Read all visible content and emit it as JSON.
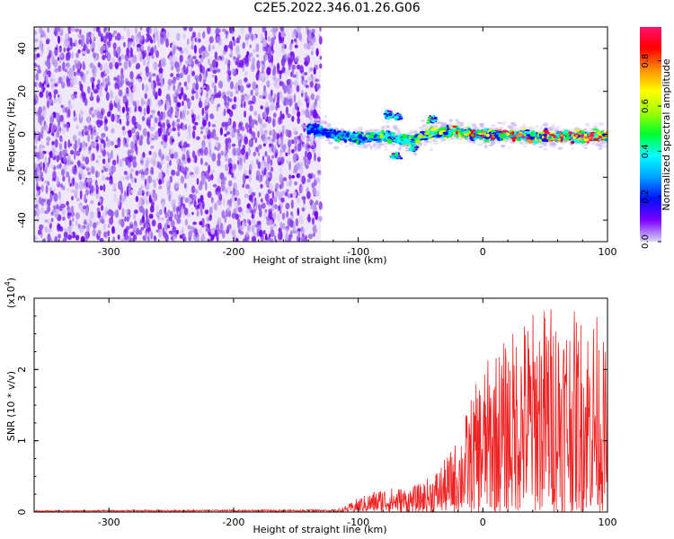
{
  "figure_title": "C2E5.2022.346.01.26.G06",
  "chart_data": [
    {
      "type": "heatmap",
      "xlabel": "Height of straight line (km)",
      "ylabel": "Frequency (Hz)",
      "xlim": [
        -360,
        100
      ],
      "ylim": [
        -50,
        50
      ],
      "xticks": [
        -300,
        -200,
        -100,
        0,
        100
      ],
      "yticks": [
        -40,
        -20,
        0,
        20,
        40
      ],
      "colorbar": {
        "label": "Normalized spectral amplitude",
        "range": [
          0,
          0.95
        ],
        "ticks": [
          0.0,
          0.2,
          0.4,
          0.6,
          0.8
        ],
        "colormap": [
          "#d8d8f0",
          "#7a00ff",
          "#0010ff",
          "#00a0ff",
          "#00ffff",
          "#00ff30",
          "#a0ff00",
          "#ffff00",
          "#ff9000",
          "#ff0000",
          "#ff1070"
        ]
      },
      "noise_region_x": [
        -360,
        -130
      ],
      "signal_track": [
        {
          "x": -140,
          "f": 3
        },
        {
          "x": -120,
          "f": 0
        },
        {
          "x": -100,
          "f": -2
        },
        {
          "x": -80,
          "f": -1
        },
        {
          "x": -60,
          "f": -3
        },
        {
          "x": -40,
          "f": 1
        },
        {
          "x": -20,
          "f": 1
        },
        {
          "x": 0,
          "f": 0
        },
        {
          "x": 20,
          "f": 0
        },
        {
          "x": 40,
          "f": -1
        },
        {
          "x": 60,
          "f": -1
        },
        {
          "x": 80,
          "f": -1
        },
        {
          "x": 100,
          "f": -1
        }
      ],
      "secondary_features": [
        {
          "x": -75,
          "f": 9
        },
        {
          "x": -68,
          "f": 8
        },
        {
          "x": -40,
          "f": 7
        },
        {
          "x": -55,
          "f": -6
        },
        {
          "x": -70,
          "f": -10
        }
      ]
    },
    {
      "type": "line",
      "xlabel": "Height of straight line (km)",
      "ylabel": "SNR (10 * v/v)",
      "y_multiplier_label": "(x10",
      "y_multiplier_exp": "4",
      "y_multiplier_close": ")",
      "xlim": [
        -360,
        100
      ],
      "ylim": [
        0,
        3
      ],
      "xticks": [
        -300,
        -200,
        -100,
        0,
        100
      ],
      "yticks": [
        0,
        1,
        2,
        3
      ],
      "color": "#ee2222",
      "envelope": [
        {
          "x": -360,
          "y": 0.02
        },
        {
          "x": -120,
          "y": 0.03
        },
        {
          "x": -110,
          "y": 0.08
        },
        {
          "x": -100,
          "y": 0.2
        },
        {
          "x": -80,
          "y": 0.35
        },
        {
          "x": -60,
          "y": 0.35
        },
        {
          "x": -50,
          "y": 0.4
        },
        {
          "x": -40,
          "y": 0.55
        },
        {
          "x": -30,
          "y": 0.75
        },
        {
          "x": -20,
          "y": 1.05
        },
        {
          "x": -10,
          "y": 1.6
        },
        {
          "x": 0,
          "y": 2.05
        },
        {
          "x": 10,
          "y": 2.3
        },
        {
          "x": 20,
          "y": 2.45
        },
        {
          "x": 30,
          "y": 2.75
        },
        {
          "x": 40,
          "y": 2.85
        },
        {
          "x": 50,
          "y": 2.95
        },
        {
          "x": 60,
          "y": 3.0
        },
        {
          "x": 70,
          "y": 2.85
        },
        {
          "x": 80,
          "y": 2.8
        },
        {
          "x": 90,
          "y": 2.9
        },
        {
          "x": 100,
          "y": 2.2
        }
      ]
    }
  ]
}
